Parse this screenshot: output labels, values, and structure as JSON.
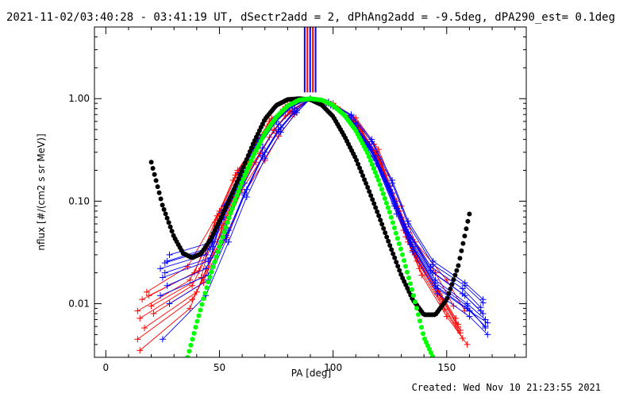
{
  "chart_data": {
    "type": "scatter",
    "title": "2021-11-02/03:40:28 - 03:41:19 UT, dSectr2add = 2, dPhAng2add = -9.5deg, dPA290_est=  0.1deg",
    "xlabel": "PA [deg]",
    "ylabel": "nflux [#/(cm2 s sr MeV)]",
    "footer": "Created: Wed Nov 10 21:23:55 2021",
    "xlim": [
      -5,
      185
    ],
    "ylim": [
      0.003,
      5.0
    ],
    "yscale": "log",
    "grid": false,
    "xticks": [
      {
        "v": 0,
        "label": "0"
      },
      {
        "v": 50,
        "label": "50"
      },
      {
        "v": 100,
        "label": "100"
      },
      {
        "v": 150,
        "label": "150"
      }
    ],
    "yticks": [
      {
        "v": 0.01,
        "label": "0.01"
      },
      {
        "v": 0.1,
        "label": "0.10"
      },
      {
        "v": 1.0,
        "label": "1.00"
      }
    ],
    "vlines": {
      "x": [
        87.5,
        88.7,
        89.9,
        91.1,
        92.3
      ],
      "ymin": 1.15,
      "ymax": 5.0,
      "colors": [
        "#0000ff",
        "#ff0000",
        "#0000ff",
        "#ff0000",
        "#0000ff"
      ]
    },
    "fit_curves": [
      {
        "color": "#000000",
        "x": [
          20,
          25,
          30,
          34,
          38,
          42,
          46,
          50,
          55,
          60,
          65,
          70,
          75,
          80,
          85,
          90,
          95,
          100,
          105,
          110,
          115,
          120,
          125,
          130,
          135,
          140,
          145,
          150,
          155,
          160
        ],
        "y": [
          0.24,
          0.09,
          0.045,
          0.031,
          0.028,
          0.031,
          0.042,
          0.064,
          0.11,
          0.2,
          0.37,
          0.63,
          0.86,
          0.98,
          1.0,
          0.98,
          0.87,
          0.67,
          0.43,
          0.26,
          0.14,
          0.073,
          0.037,
          0.019,
          0.011,
          0.0078,
          0.0078,
          0.011,
          0.023,
          0.075
        ]
      },
      {
        "color": "#00ff00",
        "x": [
          36,
          40,
          45,
          50,
          55,
          60,
          65,
          70,
          75,
          80,
          85,
          90,
          95,
          100,
          105,
          110,
          115,
          120,
          125,
          130,
          135,
          140,
          144
        ],
        "y": [
          0.003,
          0.0065,
          0.016,
          0.036,
          0.078,
          0.155,
          0.28,
          0.46,
          0.66,
          0.85,
          0.97,
          1.0,
          0.97,
          0.86,
          0.69,
          0.49,
          0.3,
          0.16,
          0.077,
          0.033,
          0.013,
          0.0047,
          0.003
        ]
      }
    ],
    "series": [
      {
        "color": "#ff0000",
        "x": [
          14,
          37,
          50,
          58,
          67,
          73,
          80,
          90,
          100,
          110,
          120,
          130,
          136,
          147,
          155
        ],
        "y": [
          0.0085,
          0.017,
          0.065,
          0.17,
          0.33,
          0.55,
          0.8,
          1.0,
          0.86,
          0.58,
          0.26,
          0.067,
          0.03,
          0.012,
          0.006
        ]
      },
      {
        "color": "#ff0000",
        "x": [
          15,
          38,
          51,
          59,
          68,
          74,
          81,
          90,
          101,
          111,
          121,
          131,
          137,
          148,
          156
        ],
        "y": [
          0.0072,
          0.015,
          0.058,
          0.15,
          0.3,
          0.5,
          0.76,
          1.0,
          0.83,
          0.54,
          0.23,
          0.052,
          0.026,
          0.01,
          0.0052
        ]
      },
      {
        "color": "#ff0000",
        "x": [
          16,
          39,
          49,
          57,
          66,
          72,
          79,
          90,
          99,
          109,
          119,
          129,
          135,
          146,
          154
        ],
        "y": [
          0.011,
          0.02,
          0.072,
          0.18,
          0.36,
          0.6,
          0.83,
          1.0,
          0.89,
          0.62,
          0.3,
          0.08,
          0.035,
          0.014,
          0.0072
        ]
      },
      {
        "color": "#ff0000",
        "x": [
          17,
          40,
          52,
          60,
          69,
          75,
          82,
          90,
          102,
          112,
          122,
          132,
          138,
          149,
          157
        ],
        "y": [
          0.0058,
          0.013,
          0.05,
          0.13,
          0.27,
          0.46,
          0.72,
          1.0,
          0.8,
          0.5,
          0.2,
          0.045,
          0.022,
          0.0088,
          0.0046
        ]
      },
      {
        "color": "#ff0000",
        "x": [
          18,
          36,
          50,
          58,
          67,
          73,
          80,
          90,
          100,
          110,
          120,
          130,
          136,
          150,
          158
        ],
        "y": [
          0.013,
          0.023,
          0.08,
          0.2,
          0.4,
          0.64,
          0.86,
          1.0,
          0.9,
          0.65,
          0.32,
          0.09,
          0.04,
          0.017,
          0.0085
        ]
      },
      {
        "color": "#ff0000",
        "x": [
          20,
          42,
          48,
          56,
          65,
          71,
          78,
          90,
          98,
          108,
          118,
          128,
          134,
          145,
          153
        ],
        "y": [
          0.0095,
          0.018,
          0.062,
          0.16,
          0.32,
          0.54,
          0.79,
          1.0,
          0.92,
          0.68,
          0.36,
          0.1,
          0.045,
          0.02,
          0.0095
        ]
      },
      {
        "color": "#ff0000",
        "x": [
          14,
          38,
          53,
          61,
          70,
          76,
          83,
          90,
          103,
          113,
          123,
          133,
          139,
          150,
          159
        ],
        "y": [
          0.0045,
          0.011,
          0.044,
          0.12,
          0.25,
          0.43,
          0.7,
          1.0,
          0.78,
          0.48,
          0.18,
          0.04,
          0.019,
          0.0075,
          0.004
        ]
      },
      {
        "color": "#ff0000",
        "x": [
          21,
          43,
          51,
          59,
          68,
          74,
          81,
          90,
          101,
          111,
          121,
          131,
          137,
          148,
          156
        ],
        "y": [
          0.008,
          0.016,
          0.055,
          0.14,
          0.29,
          0.49,
          0.74,
          1.0,
          0.84,
          0.56,
          0.24,
          0.06,
          0.028,
          0.011,
          0.0055
        ]
      },
      {
        "color": "#ff0000",
        "x": [
          15,
          37,
          49,
          57,
          66,
          72,
          79,
          90,
          99,
          109,
          119,
          129,
          135,
          146,
          154
        ],
        "y": [
          0.0035,
          0.009,
          0.04,
          0.11,
          0.24,
          0.42,
          0.68,
          1.0,
          0.88,
          0.6,
          0.28,
          0.075,
          0.033,
          0.013,
          0.0065
        ]
      },
      {
        "color": "#ff0000",
        "x": [
          19,
          41,
          50,
          58,
          67,
          73,
          80,
          90,
          100,
          110,
          120,
          130,
          136,
          147,
          155
        ],
        "y": [
          0.012,
          0.021,
          0.075,
          0.19,
          0.37,
          0.62,
          0.84,
          1.0,
          0.87,
          0.6,
          0.27,
          0.07,
          0.032,
          0.0125,
          0.0063
        ]
      },
      {
        "color": "#0000ff",
        "x": [
          24,
          44,
          52,
          60,
          68,
          75,
          82,
          90,
          98,
          108,
          117,
          126,
          133,
          144,
          158,
          166
        ],
        "y": [
          0.022,
          0.03,
          0.07,
          0.17,
          0.36,
          0.6,
          0.84,
          1.0,
          0.9,
          0.62,
          0.32,
          0.12,
          0.05,
          0.02,
          0.012,
          0.008
        ]
      },
      {
        "color": "#0000ff",
        "x": [
          25,
          45,
          53,
          61,
          69,
          76,
          83,
          90,
          99,
          109,
          118,
          127,
          134,
          145,
          159,
          167
        ],
        "y": [
          0.018,
          0.026,
          0.06,
          0.15,
          0.33,
          0.56,
          0.8,
          1.0,
          0.88,
          0.58,
          0.28,
          0.1,
          0.042,
          0.017,
          0.01,
          0.007
        ]
      },
      {
        "color": "#0000ff",
        "x": [
          26,
          46,
          51,
          59,
          67,
          74,
          81,
          90,
          97,
          107,
          116,
          125,
          132,
          143,
          157,
          165
        ],
        "y": [
          0.025,
          0.034,
          0.078,
          0.19,
          0.39,
          0.63,
          0.86,
          1.0,
          0.92,
          0.66,
          0.36,
          0.14,
          0.056,
          0.023,
          0.014,
          0.0092
        ]
      },
      {
        "color": "#0000ff",
        "x": [
          27,
          44,
          54,
          62,
          70,
          77,
          84,
          90,
          100,
          110,
          119,
          128,
          135,
          146,
          160,
          168
        ],
        "y": [
          0.015,
          0.022,
          0.052,
          0.13,
          0.3,
          0.52,
          0.77,
          1.0,
          0.85,
          0.54,
          0.25,
          0.085,
          0.036,
          0.014,
          0.0085,
          0.0065
        ]
      },
      {
        "color": "#0000ff",
        "x": [
          28,
          47,
          52,
          60,
          68,
          75,
          82,
          90,
          98,
          108,
          117,
          126,
          133,
          144,
          158,
          166
        ],
        "y": [
          0.03,
          0.04,
          0.09,
          0.21,
          0.42,
          0.66,
          0.88,
          1.0,
          0.93,
          0.7,
          0.4,
          0.16,
          0.064,
          0.026,
          0.016,
          0.011
        ]
      },
      {
        "color": "#0000ff",
        "x": [
          24,
          45,
          53,
          61,
          69,
          76,
          83,
          90,
          99,
          109,
          118,
          127,
          134,
          145,
          159,
          167
        ],
        "y": [
          0.012,
          0.019,
          0.046,
          0.12,
          0.28,
          0.5,
          0.75,
          1.0,
          0.86,
          0.56,
          0.27,
          0.095,
          0.04,
          0.016,
          0.0095,
          0.0058
        ]
      },
      {
        "color": "#0000ff",
        "x": [
          26,
          46,
          51,
          59,
          67,
          74,
          81,
          90,
          97,
          107,
          116,
          125,
          132,
          143,
          157,
          165
        ],
        "y": [
          0.02,
          0.028,
          0.066,
          0.16,
          0.35,
          0.58,
          0.82,
          1.0,
          0.91,
          0.64,
          0.34,
          0.13,
          0.053,
          0.021,
          0.0125,
          0.0085
        ]
      },
      {
        "color": "#0000ff",
        "x": [
          25,
          44,
          54,
          62,
          70,
          77,
          84,
          90,
          100,
          110,
          119,
          128,
          135,
          146,
          160,
          168
        ],
        "y": [
          0.0045,
          0.012,
          0.04,
          0.11,
          0.26,
          0.47,
          0.73,
          1.0,
          0.84,
          0.52,
          0.23,
          0.075,
          0.032,
          0.0125,
          0.0075,
          0.005
        ]
      },
      {
        "color": "#0000ff",
        "x": [
          27,
          47,
          52,
          60,
          68,
          75,
          82,
          90,
          98,
          108,
          117,
          126,
          133,
          144,
          158,
          166
        ],
        "y": [
          0.026,
          0.036,
          0.082,
          0.2,
          0.4,
          0.64,
          0.87,
          1.0,
          0.92,
          0.68,
          0.38,
          0.15,
          0.06,
          0.024,
          0.015,
          0.0102
        ]
      },
      {
        "color": "#0000ff",
        "x": [
          28,
          45,
          53,
          61,
          69,
          76,
          83,
          90,
          99,
          109,
          118,
          127,
          134,
          145,
          159,
          167
        ],
        "y": [
          0.01,
          0.017,
          0.042,
          0.115,
          0.27,
          0.48,
          0.74,
          1.0,
          0.87,
          0.57,
          0.27,
          0.09,
          0.038,
          0.015,
          0.009,
          0.006
        ]
      }
    ]
  }
}
